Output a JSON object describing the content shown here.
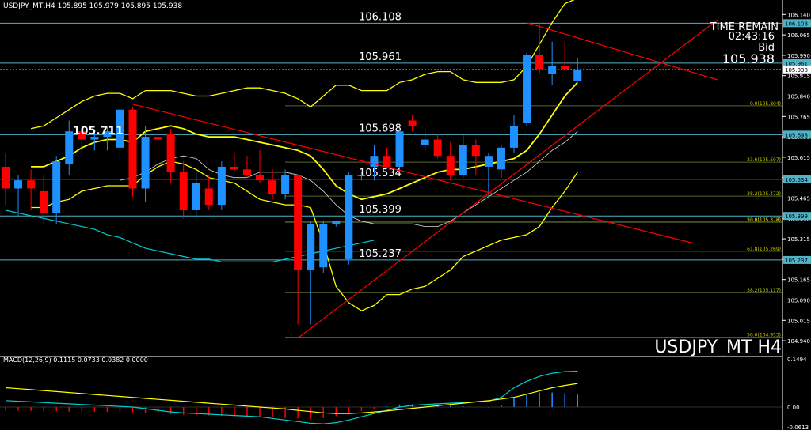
{
  "header": {
    "symbol_info": "USDJPY_MT,H4  105.895 105.979 105.895 105.938",
    "macd_info": "MACD(12,26,9) 0.1115 0.0733 0.0382 0.0000"
  },
  "overlay": {
    "time_remain_label": "TIME REMAIN",
    "time_remain_value": "02:43:16",
    "bid_label": "Bid",
    "bid_value": "105.938",
    "chart_name": "USDJPY_MT H4"
  },
  "colors": {
    "background": "#000000",
    "bull": "#1e90ff",
    "bear": "#ff0000",
    "band": "#ffff00",
    "cyan_line": "#00ced1",
    "grid": "#2a2a2a",
    "level_line": "#4fb3c7",
    "fib_line": "#556b2f",
    "trend": "#ff0000",
    "axis_text": "#ffffff"
  },
  "chart_data": [
    {
      "type": "candlestick",
      "title": "USDJPY_MT H4",
      "ylim": [
        104.885,
        106.17
      ],
      "yticks": [
        "106.140",
        "106.065",
        "105.990",
        "105.915",
        "105.840",
        "105.765",
        "105.690",
        "105.615",
        "105.540",
        "105.465",
        "105.390",
        "105.315",
        "105.240",
        "105.165",
        "105.090",
        "105.015",
        "104.940"
      ],
      "candles": [
        {
          "o": 105.58,
          "h": 105.63,
          "l": 105.44,
          "c": 105.5
        },
        {
          "o": 105.5,
          "h": 105.55,
          "l": 105.4,
          "c": 105.53
        },
        {
          "o": 105.53,
          "h": 105.57,
          "l": 105.42,
          "c": 105.5
        },
        {
          "o": 105.49,
          "h": 105.55,
          "l": 105.37,
          "c": 105.41
        },
        {
          "o": 105.41,
          "h": 105.62,
          "l": 105.37,
          "c": 105.6
        },
        {
          "o": 105.59,
          "h": 105.75,
          "l": 105.55,
          "c": 105.71
        },
        {
          "o": 105.71,
          "h": 105.73,
          "l": 105.62,
          "c": 105.68
        },
        {
          "o": 105.68,
          "h": 105.71,
          "l": 105.64,
          "c": 105.69
        },
        {
          "o": 105.69,
          "h": 105.73,
          "l": 105.64,
          "c": 105.71
        },
        {
          "o": 105.65,
          "h": 105.8,
          "l": 105.6,
          "c": 105.79
        },
        {
          "o": 105.79,
          "h": 105.8,
          "l": 105.47,
          "c": 105.5
        },
        {
          "o": 105.5,
          "h": 105.73,
          "l": 105.45,
          "c": 105.69
        },
        {
          "o": 105.69,
          "h": 105.72,
          "l": 105.61,
          "c": 105.68
        },
        {
          "o": 105.7,
          "h": 105.72,
          "l": 105.52,
          "c": 105.56
        },
        {
          "o": 105.56,
          "h": 105.6,
          "l": 105.39,
          "c": 105.42
        },
        {
          "o": 105.42,
          "h": 105.56,
          "l": 105.4,
          "c": 105.52
        },
        {
          "o": 105.5,
          "h": 105.55,
          "l": 105.42,
          "c": 105.44
        },
        {
          "o": 105.44,
          "h": 105.6,
          "l": 105.42,
          "c": 105.58
        },
        {
          "o": 105.58,
          "h": 105.63,
          "l": 105.56,
          "c": 105.57
        },
        {
          "o": 105.57,
          "h": 105.62,
          "l": 105.54,
          "c": 105.55
        },
        {
          "o": 105.55,
          "h": 105.64,
          "l": 105.52,
          "c": 105.53
        },
        {
          "o": 105.53,
          "h": 105.57,
          "l": 105.46,
          "c": 105.48
        },
        {
          "o": 105.48,
          "h": 105.57,
          "l": 105.46,
          "c": 105.55
        },
        {
          "o": 105.55,
          "h": 105.55,
          "l": 105.0,
          "c": 105.2
        },
        {
          "o": 105.2,
          "h": 105.38,
          "l": 105.0,
          "c": 105.37
        },
        {
          "o": 105.21,
          "h": 105.38,
          "l": 105.19,
          "c": 105.37
        },
        {
          "o": 105.37,
          "h": 105.38,
          "l": 105.36,
          "c": 105.38
        },
        {
          "o": 105.24,
          "h": 105.56,
          "l": 105.22,
          "c": 105.55
        },
        {
          "o": 105.55,
          "h": 105.56,
          "l": 105.53,
          "c": 105.55
        },
        {
          "o": 105.58,
          "h": 105.66,
          "l": 105.53,
          "c": 105.62
        },
        {
          "o": 105.62,
          "h": 105.65,
          "l": 105.58,
          "c": 105.58
        },
        {
          "o": 105.58,
          "h": 105.72,
          "l": 105.56,
          "c": 105.71
        },
        {
          "o": 105.75,
          "h": 105.77,
          "l": 105.71,
          "c": 105.73
        },
        {
          "o": 105.66,
          "h": 105.72,
          "l": 105.64,
          "c": 105.68
        },
        {
          "o": 105.68,
          "h": 105.7,
          "l": 105.61,
          "c": 105.62
        },
        {
          "o": 105.62,
          "h": 105.67,
          "l": 105.53,
          "c": 105.55
        },
        {
          "o": 105.55,
          "h": 105.7,
          "l": 105.54,
          "c": 105.66
        },
        {
          "o": 105.66,
          "h": 105.68,
          "l": 105.55,
          "c": 105.62
        },
        {
          "o": 105.58,
          "h": 105.63,
          "l": 105.47,
          "c": 105.62
        },
        {
          "o": 105.57,
          "h": 105.66,
          "l": 105.54,
          "c": 105.65
        },
        {
          "o": 105.65,
          "h": 105.77,
          "l": 105.63,
          "c": 105.73
        },
        {
          "o": 105.74,
          "h": 106.0,
          "l": 105.73,
          "c": 105.99
        },
        {
          "o": 105.99,
          "h": 106.11,
          "l": 105.92,
          "c": 105.94
        },
        {
          "o": 105.92,
          "h": 106.04,
          "l": 105.88,
          "c": 105.95
        },
        {
          "o": 105.95,
          "h": 106.04,
          "l": 105.94,
          "c": 105.94
        },
        {
          "o": 105.895,
          "h": 105.979,
          "l": 105.895,
          "c": 105.938
        }
      ],
      "levels": [
        {
          "price": 106.108,
          "label": "106.108"
        },
        {
          "price": 105.961,
          "label": "105.961"
        },
        {
          "price": 105.698,
          "label": "105.698"
        },
        {
          "price": 105.534,
          "label": "105.534"
        },
        {
          "price": 105.399,
          "label": "105.399"
        },
        {
          "price": 105.237,
          "label": "105.237"
        }
      ],
      "current_price": {
        "price": 105.938,
        "label": "105.938"
      },
      "swing_label": "105.711",
      "fibonacci": [
        {
          "price": 105.804,
          "label": "0.0(105.804)"
        },
        {
          "price": 105.597,
          "label": "23.6(105.597)"
        },
        {
          "price": 105.472,
          "label": "38.2(105.472)"
        },
        {
          "price": 105.377,
          "label": "23.6(105.377)"
        },
        {
          "price": 105.376,
          "label": "50.0(105.376)"
        },
        {
          "price": 105.269,
          "label": "61.8(105.269)"
        },
        {
          "price": 105.117,
          "label": "38.2(105.117)"
        },
        {
          "price": 104.953,
          "label": "50.0(104.953)"
        }
      ],
      "indicators": {
        "bb_upper": [
          105.72,
          105.73,
          105.76,
          105.79,
          105.82,
          105.84,
          105.85,
          105.85,
          105.83,
          105.86,
          105.86,
          105.86,
          105.85,
          105.84,
          105.84,
          105.85,
          105.86,
          105.87,
          105.87,
          105.86,
          105.85,
          105.83,
          105.8,
          105.84,
          105.88,
          105.88,
          105.86,
          105.86,
          105.86,
          105.89,
          105.9,
          105.92,
          105.93,
          105.93,
          105.9,
          105.89,
          105.89,
          105.89,
          105.9,
          105.95,
          106.03,
          106.11,
          106.18,
          106.2
        ],
        "bb_mid": [
          105.58,
          105.58,
          105.6,
          105.62,
          105.65,
          105.67,
          105.68,
          105.68,
          105.67,
          105.71,
          105.72,
          105.73,
          105.72,
          105.7,
          105.69,
          105.69,
          105.69,
          105.68,
          105.67,
          105.66,
          105.65,
          105.64,
          105.62,
          105.57,
          105.51,
          105.48,
          105.46,
          105.47,
          105.48,
          105.5,
          105.52,
          105.54,
          105.56,
          105.57,
          105.57,
          105.58,
          105.59,
          105.6,
          105.61,
          105.64,
          105.7,
          105.77,
          105.84,
          105.89
        ],
        "bb_lower": [
          105.43,
          105.43,
          105.45,
          105.46,
          105.49,
          105.5,
          105.51,
          105.51,
          105.51,
          105.55,
          105.58,
          105.6,
          105.59,
          105.57,
          105.54,
          105.53,
          105.52,
          105.49,
          105.46,
          105.45,
          105.44,
          105.44,
          105.43,
          105.3,
          105.14,
          105.08,
          105.05,
          105.07,
          105.11,
          105.11,
          105.13,
          105.14,
          105.17,
          105.2,
          105.25,
          105.27,
          105.29,
          105.31,
          105.32,
          105.33,
          105.36,
          105.43,
          105.49,
          105.56
        ],
        "ma_yellow": [
          105.53,
          105.54,
          105.56,
          105.59,
          105.61,
          105.62,
          105.61,
          105.57,
          105.55,
          105.54,
          105.54,
          105.56,
          105.56,
          105.56,
          105.55,
          105.53,
          105.49,
          105.44,
          105.4,
          105.38,
          105.37,
          105.37,
          105.37,
          105.37,
          105.36,
          105.36,
          105.38,
          105.41,
          105.44,
          105.47,
          105.5,
          105.53,
          105.56,
          105.6,
          105.64,
          105.67,
          105.71
        ],
        "ma_cyan": [
          105.42,
          105.41,
          105.4,
          105.39,
          105.38,
          105.37,
          105.36,
          105.35,
          105.33,
          105.32,
          105.3,
          105.28,
          105.27,
          105.26,
          105.25,
          105.24,
          105.24,
          105.23,
          105.23,
          105.23,
          105.23,
          105.23,
          105.24,
          105.25,
          105.26,
          105.27,
          105.28,
          105.29,
          105.3,
          105.31
        ]
      },
      "trendlines": [
        {
          "from": {
            "candle": 10,
            "price": 105.81
          },
          "to": {
            "candle": 54,
            "price": 105.3
          }
        },
        {
          "from": {
            "candle": 23,
            "price": 104.95
          },
          "to": {
            "candle": 56,
            "price": 106.12
          }
        },
        {
          "from": {
            "candle": 41,
            "price": 106.11
          },
          "to": {
            "candle": 56,
            "price": 105.9
          }
        }
      ]
    },
    {
      "type": "bar",
      "title": "MACD(12,26,9)",
      "ylim": [
        -0.0613,
        0.1494
      ],
      "yticks": [
        "0.1494",
        "0.00",
        "-0.0613"
      ],
      "macd_line": [
        0.02,
        0.018,
        0.016,
        0.014,
        0.012,
        0.01,
        0.008,
        0.006,
        0.004,
        0.002,
        0.0,
        -0.005,
        -0.01,
        -0.015,
        -0.018,
        -0.02,
        -0.022,
        -0.024,
        -0.026,
        -0.028,
        -0.03,
        -0.035,
        -0.04,
        -0.045,
        -0.05,
        -0.052,
        -0.048,
        -0.04,
        -0.03,
        -0.02,
        -0.01,
        0.0,
        0.005,
        0.008,
        0.01,
        0.012,
        0.014,
        0.016,
        0.018,
        0.03,
        0.06,
        0.08,
        0.095,
        0.105,
        0.11,
        0.1115
      ],
      "signal_line": [
        0.06,
        0.057,
        0.054,
        0.051,
        0.048,
        0.045,
        0.042,
        0.039,
        0.036,
        0.033,
        0.03,
        0.027,
        0.024,
        0.021,
        0.018,
        0.015,
        0.012,
        0.009,
        0.006,
        0.003,
        0.0,
        -0.003,
        -0.006,
        -0.01,
        -0.014,
        -0.018,
        -0.02,
        -0.02,
        -0.018,
        -0.015,
        -0.012,
        -0.008,
        -0.004,
        0.0,
        0.004,
        0.008,
        0.012,
        0.016,
        0.02,
        0.025,
        0.03,
        0.04,
        0.05,
        0.06,
        0.067,
        0.0733
      ],
      "histogram": [
        -0.01,
        -0.011,
        -0.012,
        -0.012,
        -0.013,
        -0.014,
        -0.014,
        -0.015,
        -0.015,
        -0.015,
        -0.016,
        -0.018,
        -0.02,
        -0.022,
        -0.024,
        -0.025,
        -0.026,
        -0.027,
        -0.028,
        -0.028,
        -0.03,
        -0.032,
        -0.034,
        -0.035,
        -0.036,
        -0.034,
        -0.028,
        -0.02,
        -0.012,
        -0.005,
        0.002,
        0.008,
        0.009,
        0.008,
        0.006,
        0.004,
        0.002,
        0.0,
        -0.002,
        0.005,
        0.03,
        0.04,
        0.045,
        0.045,
        0.043,
        0.0382
      ]
    }
  ]
}
